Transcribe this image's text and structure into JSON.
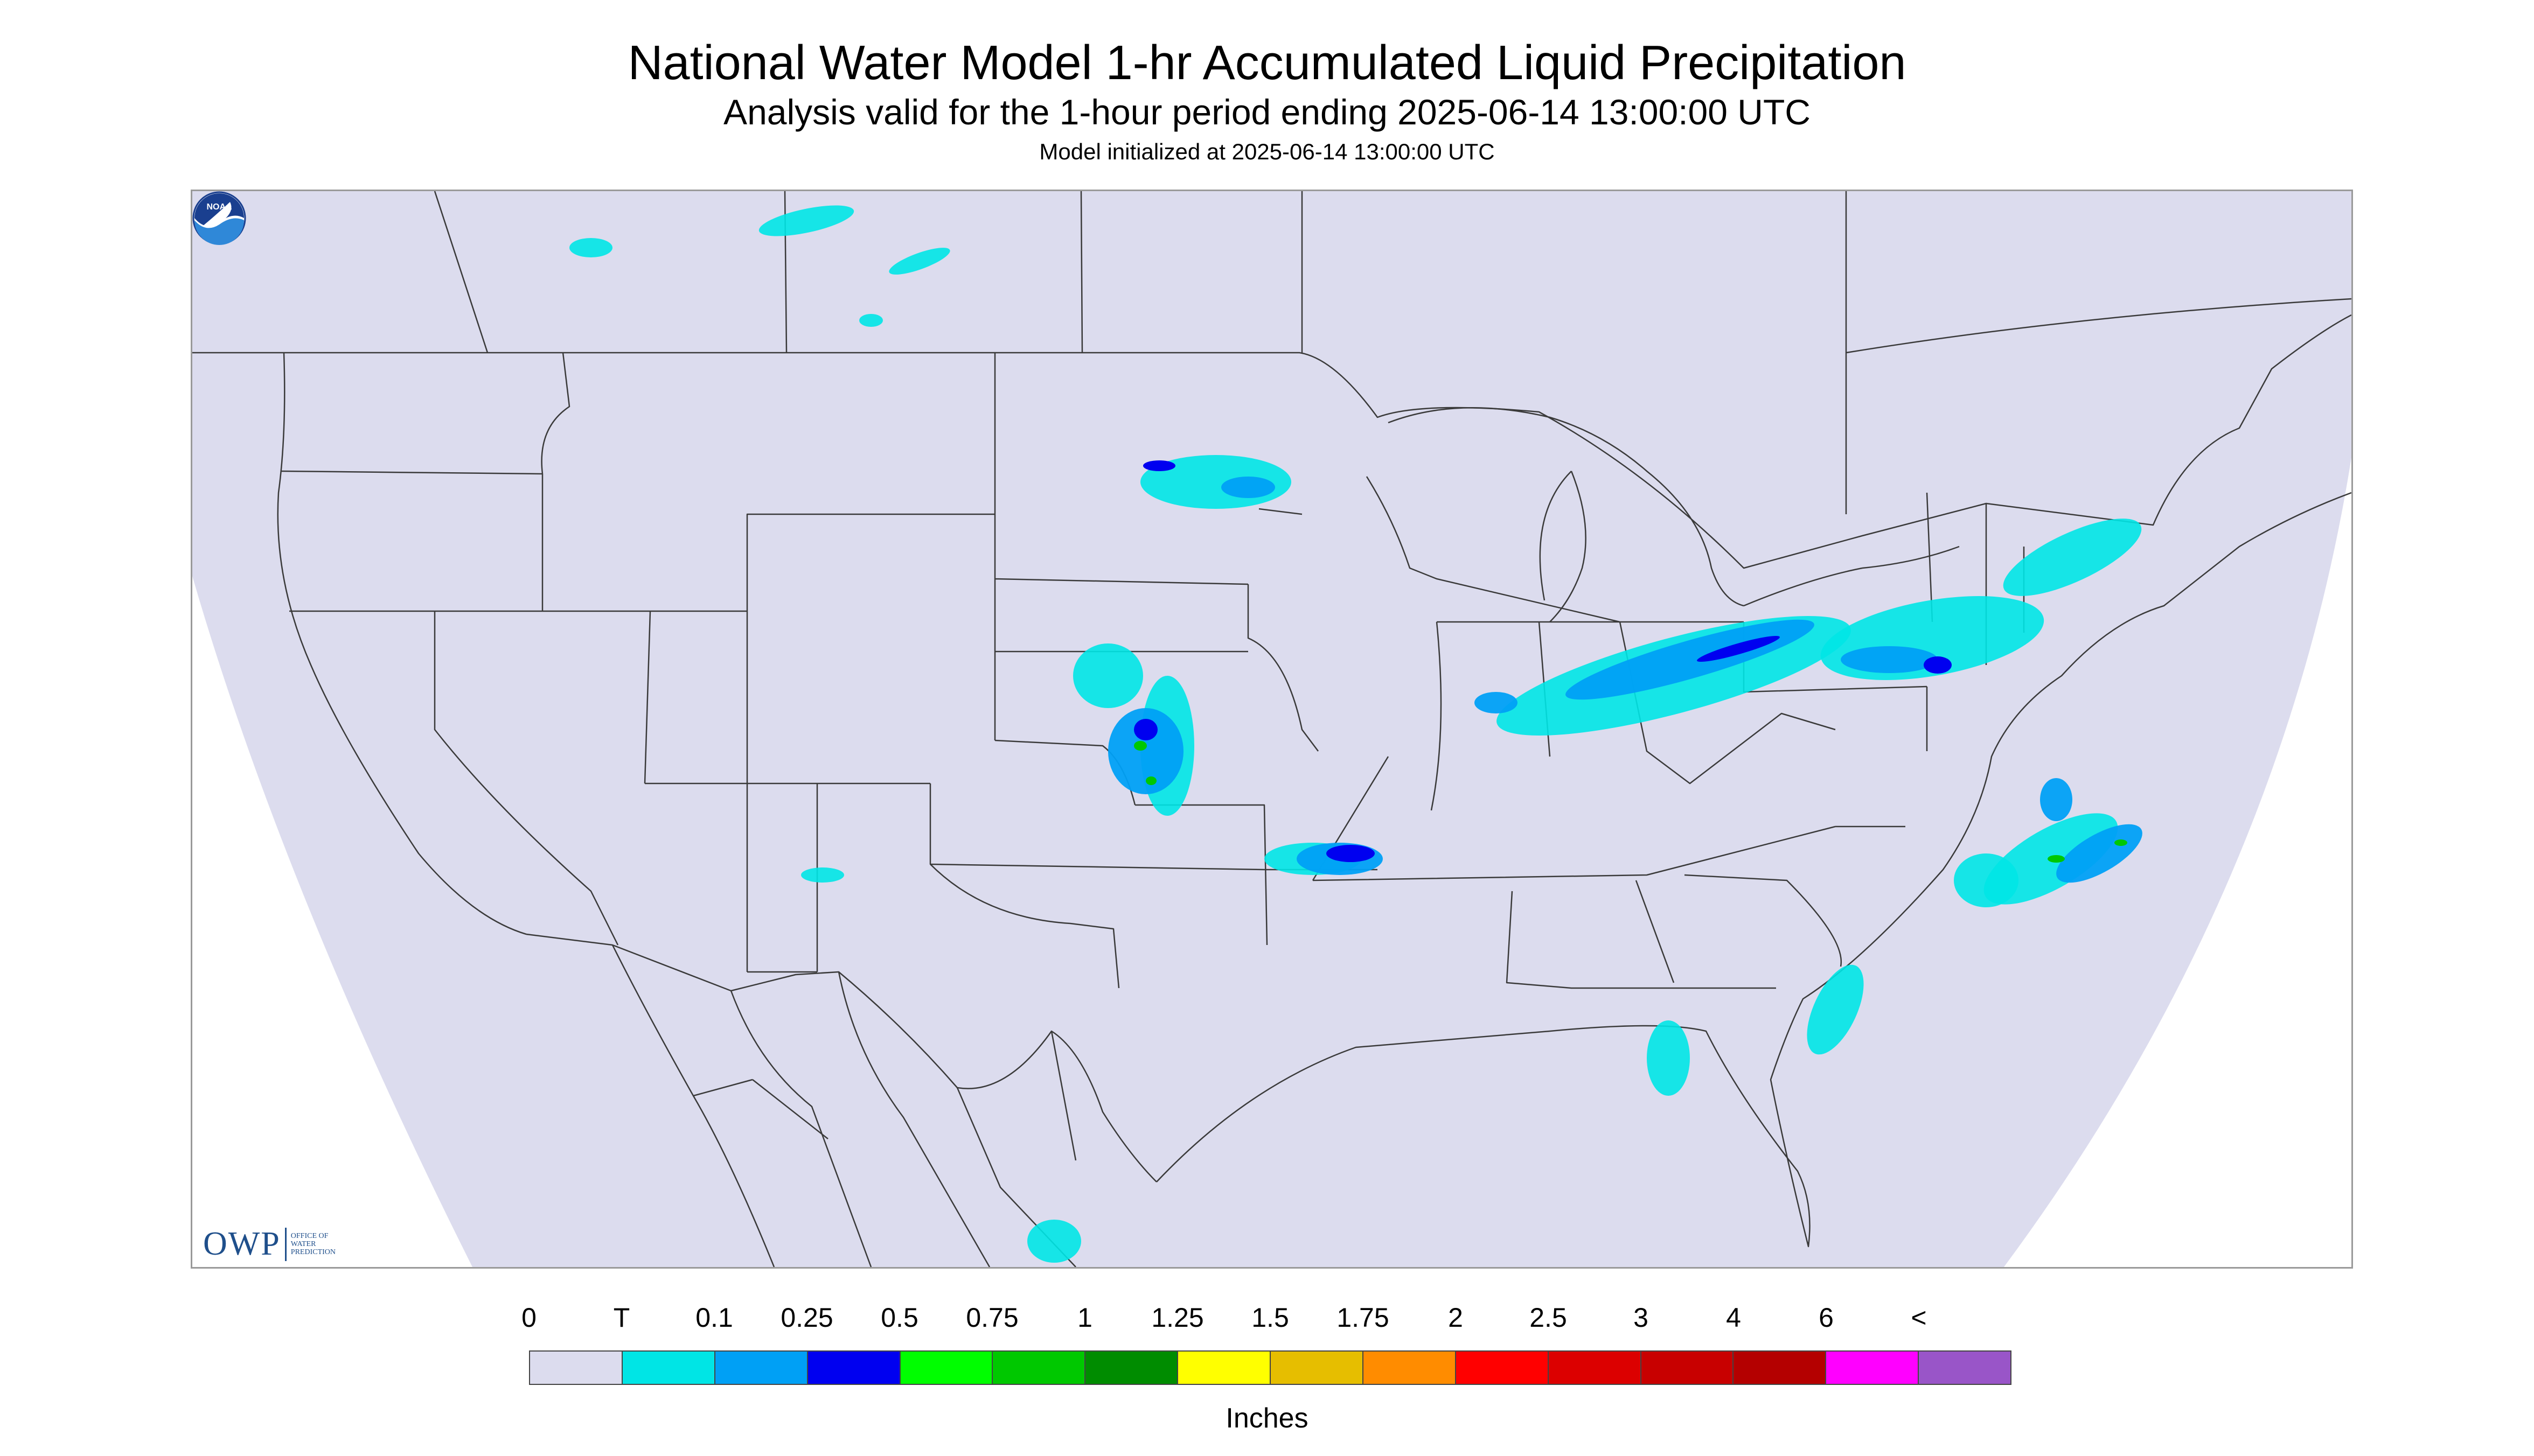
{
  "title": "National Water Model 1-hr Accumulated Liquid Precipitation",
  "subtitle": "Analysis valid for the 1-hour period ending 2025-06-14 13:00:00 UTC",
  "init_line": "Model initialized at 2025-06-14 13:00:00 UTC",
  "map": {
    "domain_color": "#dcdcee",
    "outside_color": "#ffffff",
    "boundary_color": "#3a3a3a"
  },
  "logos": {
    "owp_mark": "OWP",
    "owp_text": [
      "OFFICE OF",
      "WATER",
      "PREDICTION"
    ],
    "noaa_text": "NOAA",
    "noaa_icon": "noaa-logo-icon"
  },
  "legend": {
    "labels": [
      "0",
      "T",
      "0.1",
      "0.25",
      "0.5",
      "0.75",
      "1",
      "1.25",
      "1.5",
      "1.75",
      "2",
      "2.5",
      "3",
      "4",
      "6",
      "<"
    ],
    "colors": [
      "#dcdcee",
      "#00e5e5",
      "#00a0f5",
      "#0000f0",
      "#00fe00",
      "#00c800",
      "#008c00",
      "#ffff00",
      "#e6be00",
      "#ff8c00",
      "#ff0000",
      "#dc0000",
      "#c80000",
      "#b40000",
      "#ff00ff",
      "#9955c8"
    ],
    "units": "Inches"
  }
}
